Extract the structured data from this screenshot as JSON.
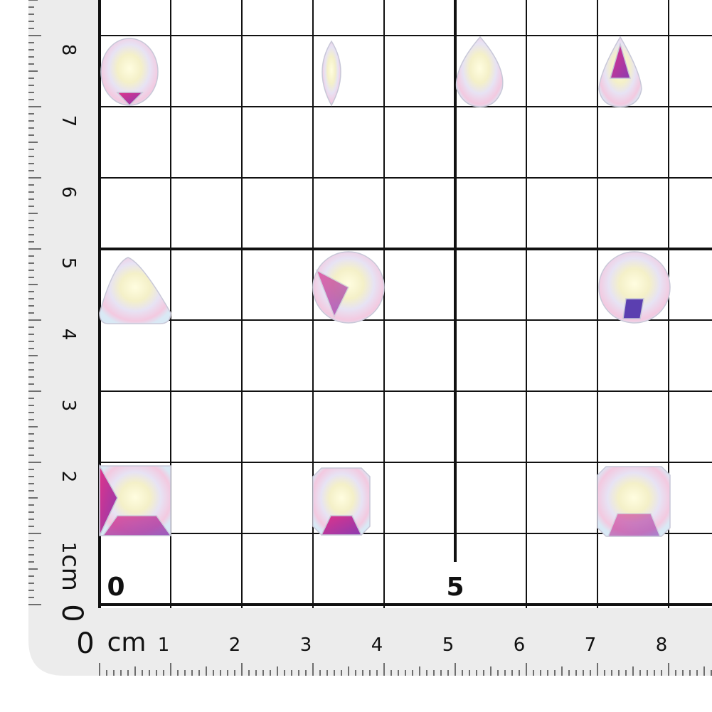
{
  "left_ruler": {
    "numbers": [
      "0",
      "1",
      "2",
      "3",
      "4",
      "5",
      "6",
      "7",
      "8"
    ],
    "unit": "cm"
  },
  "bottom_ruler": {
    "numbers": [
      "0",
      "1",
      "2",
      "3",
      "4",
      "5",
      "6",
      "7",
      "8"
    ],
    "unit": "cm"
  },
  "grid_labels": [
    "0",
    "5"
  ]
}
